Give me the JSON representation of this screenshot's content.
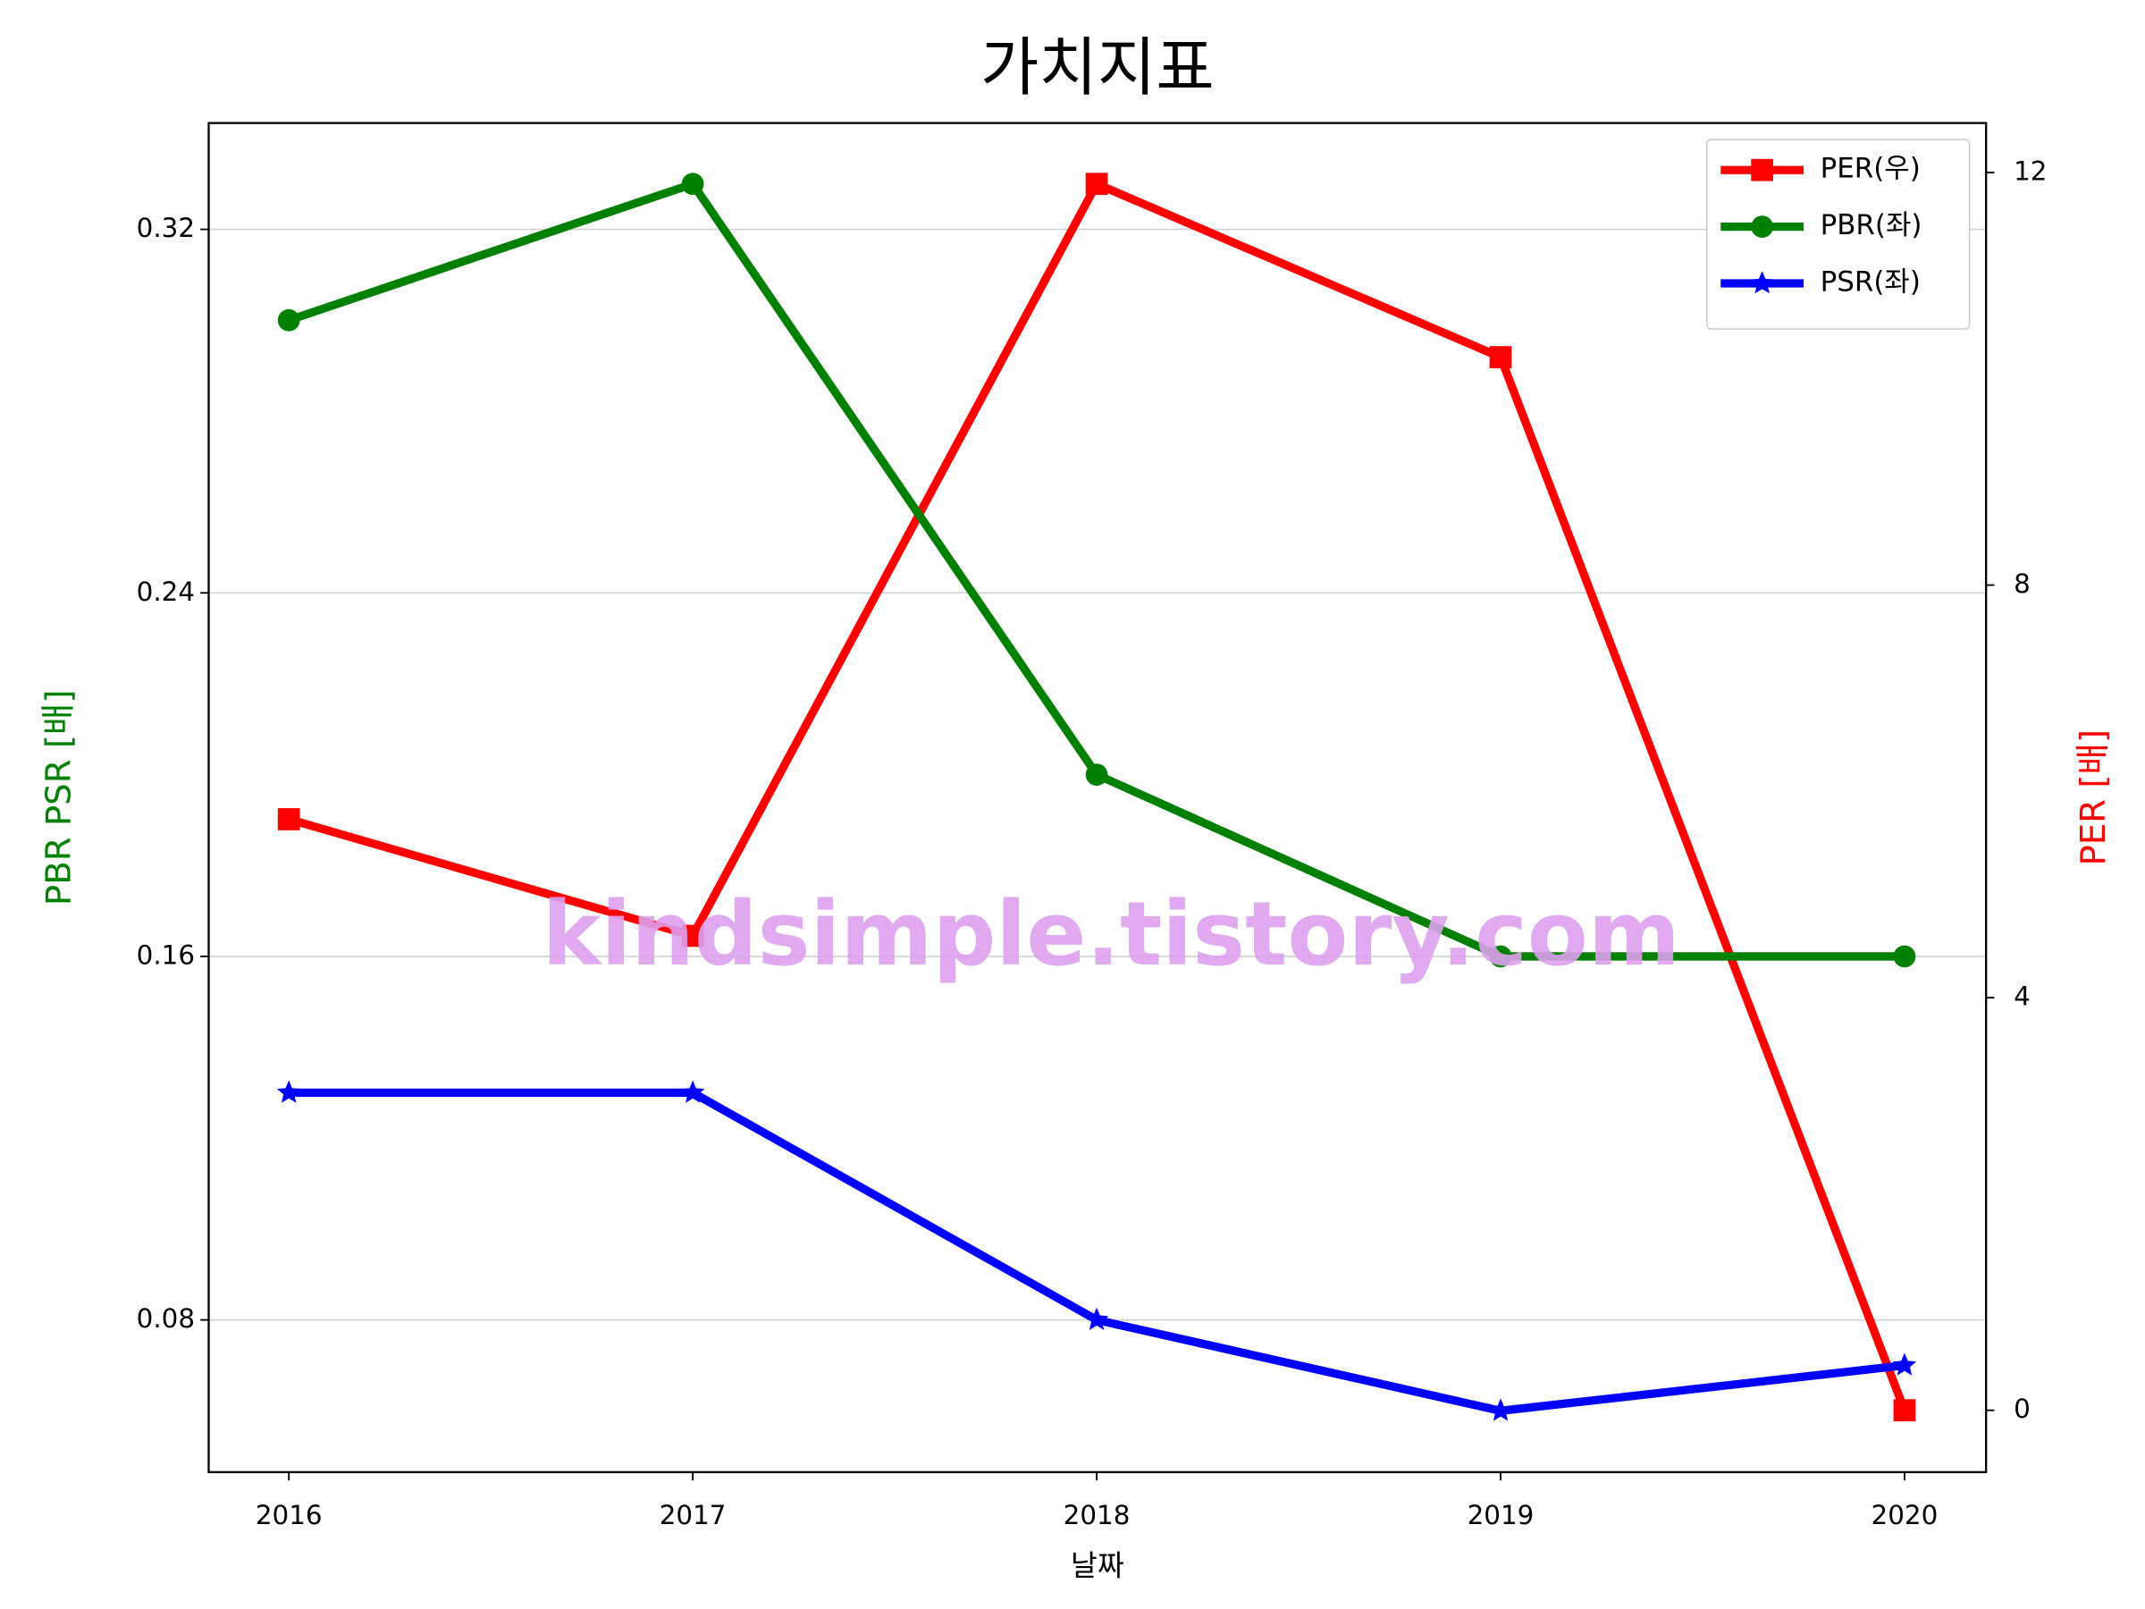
{
  "chart_data": {
    "type": "line",
    "title": "가치지표",
    "xlabel": "날짜",
    "ylabel": "PBR PSR [배]",
    "y2label": "PER [배]",
    "ylabel_color": "green",
    "y2label_color": "red",
    "watermark": "kindsimple.tistory.com",
    "categories": [
      "2016",
      "2017",
      "2018",
      "2019",
      "2020"
    ],
    "series": [
      {
        "name": "PER(우)",
        "color": "red",
        "marker": "square",
        "axis": "y2",
        "values": [
          5.73,
          4.6,
          11.89,
          10.21,
          0
        ]
      },
      {
        "name": "PBR(좌)",
        "color": "green",
        "marker": "circle",
        "values": [
          0.3,
          0.33,
          0.2,
          0.16,
          0.16
        ]
      },
      {
        "name": "PSR(좌)",
        "color": "blue",
        "marker": "star",
        "values": [
          0.13,
          0.13,
          0.08,
          0.06,
          0.07
        ]
      }
    ],
    "ylim": [
      0.0465,
      0.3434
    ],
    "yticks": [
      0.08,
      0.16,
      0.24,
      0.32
    ],
    "y2lim": [
      -0.6,
      12.48
    ],
    "y2ticks": [
      0,
      4,
      8,
      12
    ],
    "grid": true,
    "legend": "upper right"
  }
}
